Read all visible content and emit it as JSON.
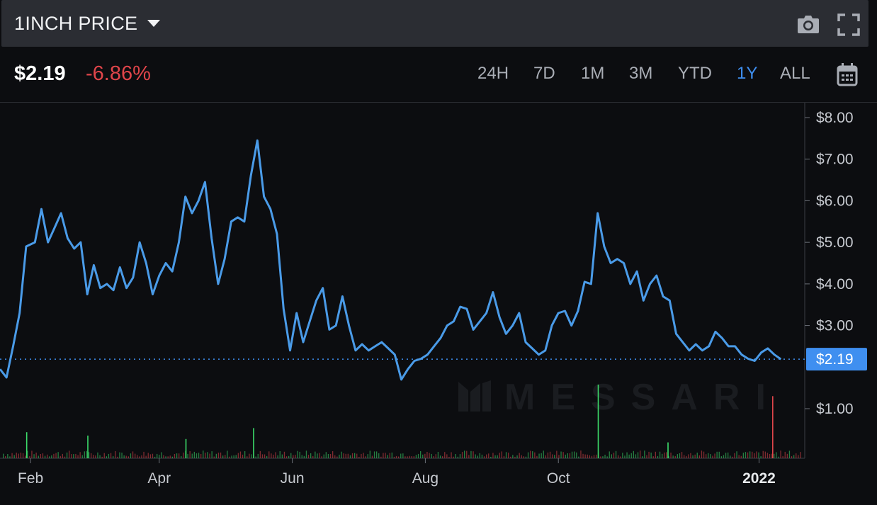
{
  "header": {
    "title": "1INCH PRICE",
    "camera_icon": "camera-icon",
    "fullscreen_icon": "fullscreen-icon"
  },
  "stats": {
    "price": "$2.19",
    "change": "-6.86%",
    "change_color": "#e0454a",
    "ranges": [
      "24H",
      "7D",
      "1M",
      "3M",
      "YTD",
      "1Y",
      "ALL"
    ],
    "active_range": "1Y",
    "calendar_icon": "calendar-icon"
  },
  "watermark": "MESSARI",
  "colors": {
    "line": "#4a9be8",
    "tag": "#3f8ff0",
    "volume_up": "#3ddc6a",
    "volume_down": "#e0454a"
  },
  "chart_data": {
    "type": "line",
    "ylim": [
      0,
      8.5
    ],
    "yticks": [
      {
        "value": 1,
        "label": "$1.00"
      },
      {
        "value": 3,
        "label": "$3.00"
      },
      {
        "value": 4,
        "label": "$4.00"
      },
      {
        "value": 5,
        "label": "$5.00"
      },
      {
        "value": 6,
        "label": "$6.00"
      },
      {
        "value": 7,
        "label": "$7.00"
      },
      {
        "value": 8,
        "label": "$8.00"
      }
    ],
    "xrange": [
      "2021-01-18",
      "2022-01-20"
    ],
    "xticks": [
      {
        "date": "2021-02-01",
        "label": "Feb"
      },
      {
        "date": "2021-04-01",
        "label": "Apr"
      },
      {
        "date": "2021-06-01",
        "label": "Jun"
      },
      {
        "date": "2021-08-01",
        "label": "Aug"
      },
      {
        "date": "2021-10-01",
        "label": "Oct"
      },
      {
        "date": "2022-01-01",
        "label": "2022"
      }
    ],
    "current_price": 2.19,
    "current_label": "$2.19",
    "series": [
      {
        "points": [
          [
            "2021-01-18",
            1.95
          ],
          [
            "2021-01-21",
            1.75
          ],
          [
            "2021-01-24",
            2.5
          ],
          [
            "2021-01-27",
            3.3
          ],
          [
            "2021-01-30",
            4.9
          ],
          [
            "2021-02-03",
            5.0
          ],
          [
            "2021-02-06",
            5.8
          ],
          [
            "2021-02-09",
            5.0
          ],
          [
            "2021-02-12",
            5.35
          ],
          [
            "2021-02-15",
            5.7
          ],
          [
            "2021-02-18",
            5.1
          ],
          [
            "2021-02-21",
            4.85
          ],
          [
            "2021-02-24",
            5.0
          ],
          [
            "2021-02-27",
            3.75
          ],
          [
            "2021-03-02",
            4.45
          ],
          [
            "2021-03-05",
            3.9
          ],
          [
            "2021-03-08",
            4.0
          ],
          [
            "2021-03-11",
            3.85
          ],
          [
            "2021-03-14",
            4.4
          ],
          [
            "2021-03-17",
            3.9
          ],
          [
            "2021-03-20",
            4.15
          ],
          [
            "2021-03-23",
            5.0
          ],
          [
            "2021-03-26",
            4.5
          ],
          [
            "2021-03-29",
            3.75
          ],
          [
            "2021-04-01",
            4.2
          ],
          [
            "2021-04-04",
            4.5
          ],
          [
            "2021-04-07",
            4.3
          ],
          [
            "2021-04-10",
            5.0
          ],
          [
            "2021-04-13",
            6.1
          ],
          [
            "2021-04-16",
            5.7
          ],
          [
            "2021-04-19",
            6.0
          ],
          [
            "2021-04-22",
            6.45
          ],
          [
            "2021-04-25",
            5.1
          ],
          [
            "2021-04-28",
            4.0
          ],
          [
            "2021-05-01",
            4.6
          ],
          [
            "2021-05-04",
            5.5
          ],
          [
            "2021-05-07",
            5.6
          ],
          [
            "2021-05-10",
            5.5
          ],
          [
            "2021-05-13",
            6.6
          ],
          [
            "2021-05-16",
            7.45
          ],
          [
            "2021-05-19",
            6.1
          ],
          [
            "2021-05-22",
            5.8
          ],
          [
            "2021-05-25",
            5.2
          ],
          [
            "2021-05-28",
            3.4
          ],
          [
            "2021-05-31",
            2.4
          ],
          [
            "2021-06-03",
            3.3
          ],
          [
            "2021-06-06",
            2.6
          ],
          [
            "2021-06-09",
            3.1
          ],
          [
            "2021-06-12",
            3.6
          ],
          [
            "2021-06-15",
            3.9
          ],
          [
            "2021-06-18",
            2.9
          ],
          [
            "2021-06-21",
            3.0
          ],
          [
            "2021-06-24",
            3.7
          ],
          [
            "2021-06-27",
            3.0
          ],
          [
            "2021-06-30",
            2.4
          ],
          [
            "2021-07-03",
            2.55
          ],
          [
            "2021-07-06",
            2.4
          ],
          [
            "2021-07-09",
            2.5
          ],
          [
            "2021-07-12",
            2.6
          ],
          [
            "2021-07-15",
            2.45
          ],
          [
            "2021-07-18",
            2.3
          ],
          [
            "2021-07-21",
            1.7
          ],
          [
            "2021-07-24",
            1.95
          ],
          [
            "2021-07-27",
            2.15
          ],
          [
            "2021-07-30",
            2.2
          ],
          [
            "2021-08-02",
            2.3
          ],
          [
            "2021-08-05",
            2.5
          ],
          [
            "2021-08-08",
            2.7
          ],
          [
            "2021-08-11",
            3.0
          ],
          [
            "2021-08-14",
            3.1
          ],
          [
            "2021-08-17",
            3.45
          ],
          [
            "2021-08-20",
            3.4
          ],
          [
            "2021-08-23",
            2.9
          ],
          [
            "2021-08-26",
            3.1
          ],
          [
            "2021-08-29",
            3.3
          ],
          [
            "2021-09-01",
            3.8
          ],
          [
            "2021-09-04",
            3.2
          ],
          [
            "2021-09-07",
            2.8
          ],
          [
            "2021-09-10",
            3.0
          ],
          [
            "2021-09-13",
            3.3
          ],
          [
            "2021-09-16",
            2.6
          ],
          [
            "2021-09-19",
            2.45
          ],
          [
            "2021-09-22",
            2.3
          ],
          [
            "2021-09-25",
            2.4
          ],
          [
            "2021-09-28",
            3.0
          ],
          [
            "2021-10-01",
            3.3
          ],
          [
            "2021-10-04",
            3.35
          ],
          [
            "2021-10-07",
            3.0
          ],
          [
            "2021-10-10",
            3.35
          ],
          [
            "2021-10-13",
            4.05
          ],
          [
            "2021-10-16",
            4.0
          ],
          [
            "2021-10-19",
            5.7
          ],
          [
            "2021-10-22",
            4.9
          ],
          [
            "2021-10-25",
            4.5
          ],
          [
            "2021-10-28",
            4.6
          ],
          [
            "2021-10-31",
            4.5
          ],
          [
            "2021-11-03",
            4.0
          ],
          [
            "2021-11-06",
            4.3
          ],
          [
            "2021-11-09",
            3.6
          ],
          [
            "2021-11-12",
            4.0
          ],
          [
            "2021-11-15",
            4.2
          ],
          [
            "2021-11-18",
            3.7
          ],
          [
            "2021-11-21",
            3.6
          ],
          [
            "2021-11-24",
            2.8
          ],
          [
            "2021-11-27",
            2.6
          ],
          [
            "2021-11-30",
            2.4
          ],
          [
            "2021-12-03",
            2.55
          ],
          [
            "2021-12-06",
            2.4
          ],
          [
            "2021-12-09",
            2.5
          ],
          [
            "2021-12-12",
            2.85
          ],
          [
            "2021-12-15",
            2.7
          ],
          [
            "2021-12-18",
            2.5
          ],
          [
            "2021-12-21",
            2.5
          ],
          [
            "2021-12-24",
            2.3
          ],
          [
            "2021-12-27",
            2.2
          ],
          [
            "2021-12-30",
            2.15
          ],
          [
            "2022-01-02",
            2.35
          ],
          [
            "2022-01-05",
            2.45
          ],
          [
            "2022-01-08",
            2.3
          ],
          [
            "2022-01-11",
            2.19
          ]
        ]
      }
    ],
    "volume_spikes": [
      {
        "date": "2021-10-19",
        "relative": 1.0,
        "direction": "up"
      },
      {
        "date": "2022-01-07",
        "relative": 0.83,
        "direction": "down"
      },
      {
        "date": "2021-05-14",
        "relative": 0.36,
        "direction": "up"
      },
      {
        "date": "2021-01-30",
        "relative": 0.3,
        "direction": "up"
      },
      {
        "date": "2021-02-27",
        "relative": 0.25,
        "direction": "up"
      },
      {
        "date": "2021-04-13",
        "relative": 0.2,
        "direction": "up"
      },
      {
        "date": "2021-11-20",
        "relative": 0.15,
        "direction": "up"
      }
    ]
  }
}
